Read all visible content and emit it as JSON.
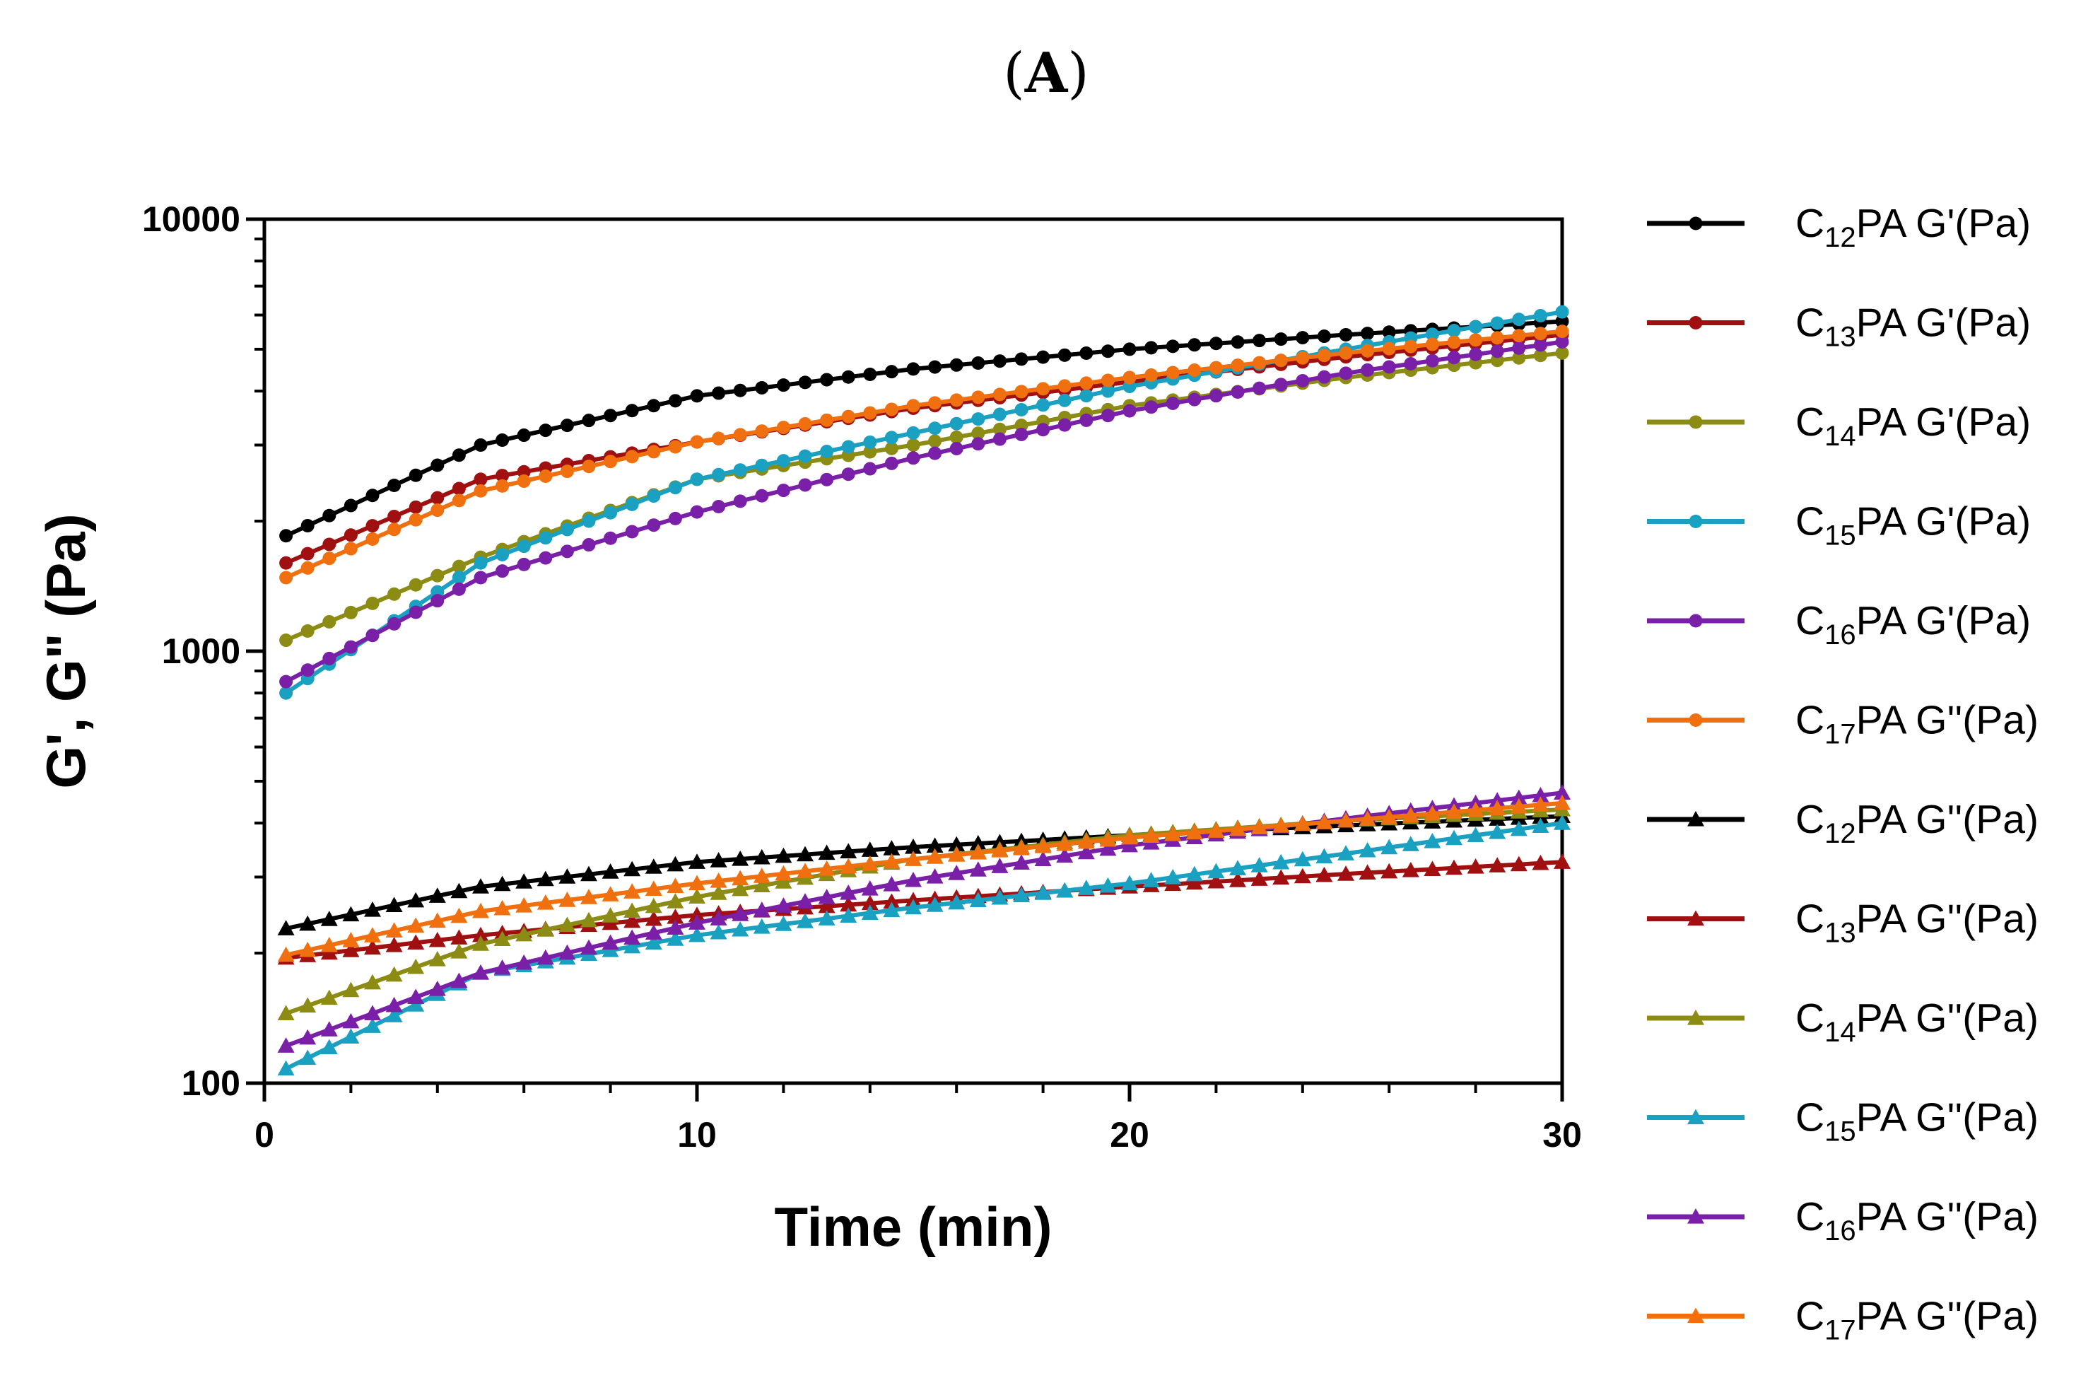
{
  "figure": {
    "panel_label_open": "(",
    "panel_label_letter": "A",
    "panel_label_close": ")"
  },
  "chart_data": {
    "type": "line",
    "title": "(A)",
    "xlabel": "Time (min)",
    "ylabel": "G', G\" (Pa)",
    "xlim": [
      0,
      30
    ],
    "ylim": [
      100,
      10000
    ],
    "yscale": "log",
    "xticks": [
      0,
      10,
      20,
      30
    ],
    "xtick_labels": [
      "0",
      "10",
      "20",
      "30"
    ],
    "yticks": [
      100,
      1000,
      10000
    ],
    "ytick_labels": [
      "100",
      "1000",
      "10000"
    ],
    "legend_position": "right",
    "x": [
      0.5,
      5,
      10,
      15,
      20,
      25,
      30
    ],
    "series": [
      {
        "name": "C12PA G'(Pa)",
        "label_c": "C",
        "label_sub": "12",
        "label_rest": "PA G'(Pa)",
        "color": "#000000",
        "marker": "circle",
        "values": [
          1850,
          3000,
          3900,
          4500,
          5000,
          5400,
          5800
        ]
      },
      {
        "name": "C13PA G'(Pa)",
        "label_c": "C",
        "label_sub": "13",
        "label_rest": "PA G'(Pa)",
        "color": "#a01010",
        "marker": "circle",
        "values": [
          1600,
          2500,
          3050,
          3650,
          4200,
          4800,
          5400
        ]
      },
      {
        "name": "C14PA G'(Pa)",
        "label_c": "C",
        "label_sub": "14",
        "label_rest": "PA G'(Pa)",
        "color": "#8c8c14",
        "marker": "circle",
        "values": [
          1060,
          1650,
          2500,
          3000,
          3700,
          4300,
          4900
        ]
      },
      {
        "name": "C15PA G'(Pa)",
        "label_c": "C",
        "label_sub": "15",
        "label_rest": "PA G'(Pa)",
        "color": "#1aa0c0",
        "marker": "circle",
        "values": [
          800,
          1600,
          2500,
          3200,
          4100,
          5000,
          6100
        ]
      },
      {
        "name": "C16PA G'(Pa)",
        "label_c": "C",
        "label_sub": "16",
        "label_rest": "PA G'(Pa)",
        "color": "#7a1fa8",
        "marker": "circle",
        "values": [
          850,
          1480,
          2100,
          2800,
          3600,
          4400,
          5200
        ]
      },
      {
        "name": "C17PA G''(Pa)",
        "label_c": "C",
        "label_sub": "17",
        "label_rest": "PA G''(Pa)",
        "color": "#f07010",
        "marker": "circle",
        "values": [
          1480,
          2350,
          3050,
          3700,
          4300,
          4900,
          5500
        ]
      },
      {
        "name": "C12PA G''(Pa)",
        "label_c": "C",
        "label_sub": "12",
        "label_rest": "PA G''(Pa)",
        "color": "#000000",
        "marker": "triangle",
        "values": [
          228,
          285,
          325,
          352,
          375,
          395,
          415
        ]
      },
      {
        "name": "C13PA G''(Pa)",
        "label_c": "C",
        "label_sub": "13",
        "label_rest": "PA G''(Pa)",
        "color": "#a01010",
        "marker": "triangle",
        "values": [
          195,
          220,
          245,
          265,
          285,
          305,
          325
        ]
      },
      {
        "name": "C14PA G''(Pa)",
        "label_c": "C",
        "label_sub": "14",
        "label_rest": "PA G''(Pa)",
        "color": "#8c8c14",
        "marker": "triangle",
        "values": [
          145,
          210,
          270,
          330,
          375,
          405,
          430
        ]
      },
      {
        "name": "C15PA G''(Pa)",
        "label_c": "C",
        "label_sub": "15",
        "label_rest": "PA G''(Pa)",
        "color": "#1aa0c0",
        "marker": "triangle",
        "values": [
          108,
          180,
          220,
          255,
          290,
          340,
          400
        ]
      },
      {
        "name": "C16PA G''(Pa)",
        "label_c": "C",
        "label_sub": "16",
        "label_rest": "PA G''(Pa)",
        "color": "#7a1fa8",
        "marker": "triangle",
        "values": [
          122,
          180,
          235,
          295,
          355,
          410,
          470
        ]
      },
      {
        "name": "C17PA G''(Pa)",
        "label_c": "C",
        "label_sub": "17",
        "label_rest": "PA G''(Pa)",
        "color": "#f07010",
        "marker": "triangle",
        "values": [
          198,
          250,
          290,
          330,
          370,
          405,
          445
        ]
      }
    ]
  }
}
